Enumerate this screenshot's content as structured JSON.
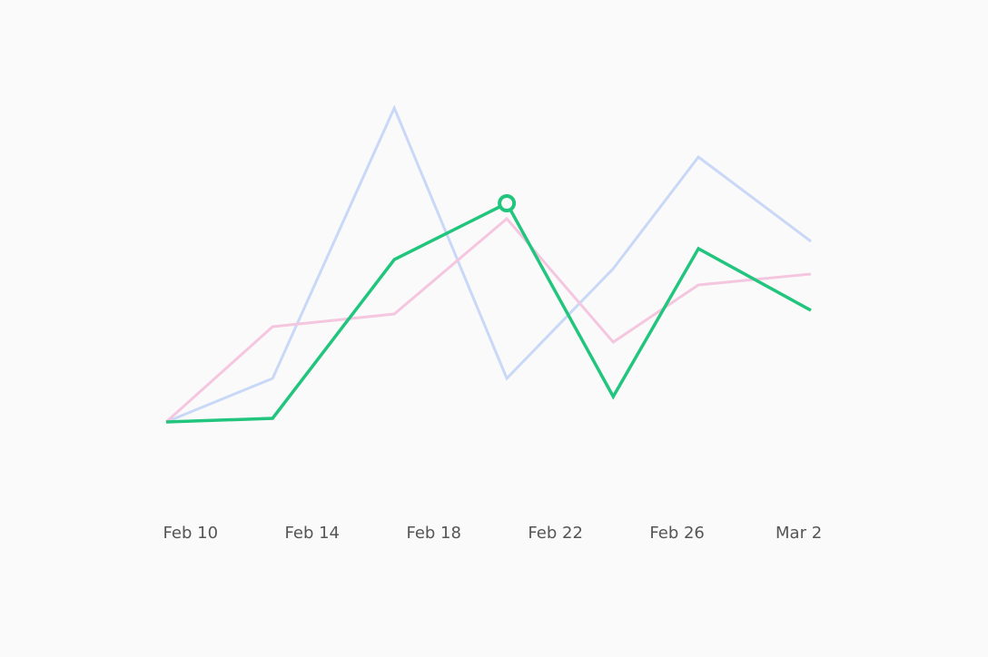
{
  "chart_data": {
    "type": "line",
    "x": [
      -0.8,
      2.7,
      6.7,
      10.4,
      13.9,
      16.7,
      20.4
    ],
    "xlim": [
      -0.8,
      20.4
    ],
    "xticks": [
      {
        "value": 0,
        "label": "Feb 10"
      },
      {
        "value": 4,
        "label": "Feb 14"
      },
      {
        "value": 8,
        "label": "Feb 18"
      },
      {
        "value": 12,
        "label": "Feb 22"
      },
      {
        "value": 16,
        "label": "Feb 26"
      },
      {
        "value": 20,
        "label": "Mar 2"
      }
    ],
    "ylim": [
      0,
      100
    ],
    "series": [
      {
        "color": "#c9d8f7",
        "values": [
          8.75,
          20.75,
          95.25,
          20.75,
          51,
          81.75,
          58.5
        ]
      },
      {
        "color": "#f5c6df",
        "values": [
          8.75,
          35,
          38.5,
          64.75,
          30.75,
          46.5,
          49.5
        ]
      },
      {
        "color": "#22c57d",
        "values": [
          8.75,
          9.75,
          53.5,
          69,
          15.75,
          56.5,
          39.5
        ],
        "highlight_index": 3
      }
    ]
  }
}
